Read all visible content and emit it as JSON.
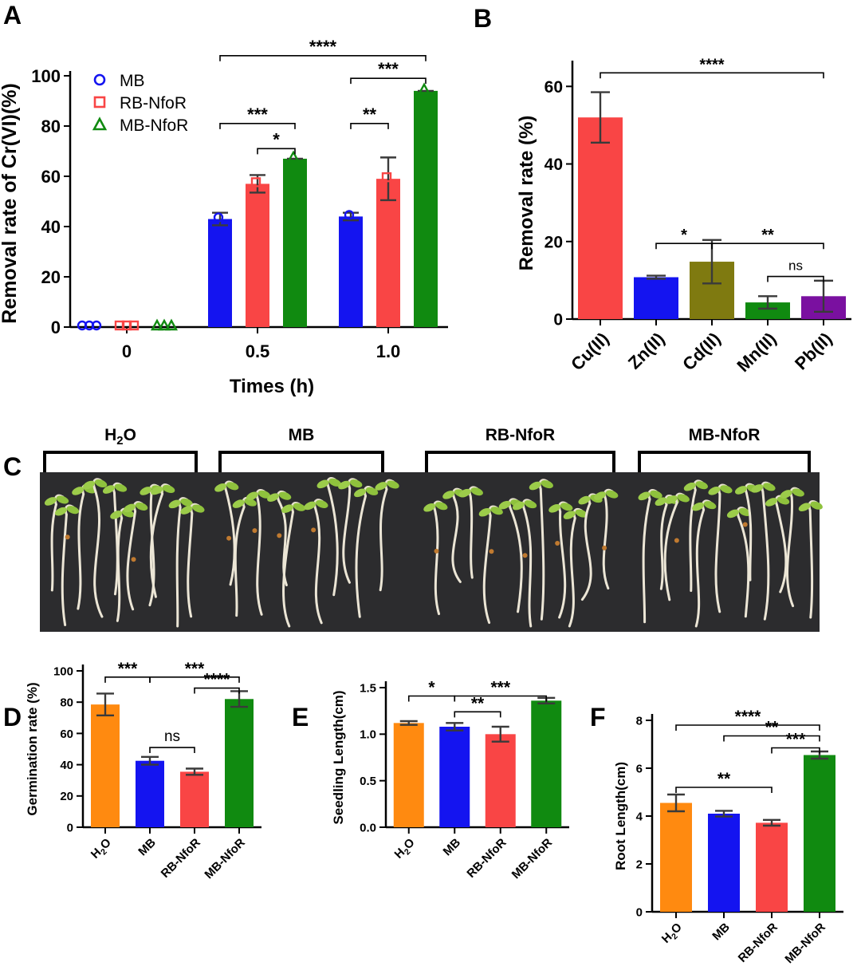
{
  "colors": {
    "blue": "#1414f0",
    "red": "#f94545",
    "green": "#108a10",
    "orange": "#ff8a10",
    "olive": "#7f7a10",
    "purple": "#7a10a0"
  },
  "panel_labels": {
    "a": "A",
    "b": "B",
    "c": "C",
    "d": "D",
    "e": "E",
    "f": "F"
  },
  "photo": {
    "groups": [
      {
        "label": "H",
        "sub": "2",
        "tail": "O"
      },
      {
        "label": "MB",
        "sub": "",
        "tail": ""
      },
      {
        "label": "RB-NfoR",
        "sub": "",
        "tail": ""
      },
      {
        "label": "MB-NfoR",
        "sub": "",
        "tail": ""
      }
    ]
  },
  "chart_data": [
    {
      "id": "A",
      "type": "bar",
      "xlabel": "Times (h)",
      "ylabel": "Removal rate of Cr(VI)(%)",
      "categories": [
        "0",
        "0.5",
        "1.0"
      ],
      "yticks": [
        "0",
        "20",
        "40",
        "60",
        "80",
        "100"
      ],
      "ylim": [
        0,
        100
      ],
      "legend_position": "top-left",
      "series": [
        {
          "name": "MB",
          "color_key": "blue",
          "marker": "circle",
          "values": [
            0,
            43,
            44
          ],
          "err": [
            0,
            2.5,
            1.5
          ]
        },
        {
          "name": "RB-NfoR",
          "color_key": "red",
          "marker": "square",
          "values": [
            0,
            57,
            59
          ],
          "err": [
            0,
            3.5,
            8.5
          ]
        },
        {
          "name": "MB-NfoR",
          "color_key": "green",
          "marker": "triangle",
          "values": [
            0,
            67,
            94
          ],
          "err": [
            0,
            0.5,
            0.5
          ]
        }
      ],
      "significance": [
        {
          "label": "****",
          "from": [
            1,
            0
          ],
          "to": [
            2,
            2
          ],
          "y": 108
        },
        {
          "label": "***",
          "from": [
            2,
            0
          ],
          "to": [
            2,
            2
          ],
          "y": 99
        },
        {
          "label": "***",
          "from": [
            1,
            0
          ],
          "to": [
            1,
            2
          ],
          "y": 81
        },
        {
          "label": "**",
          "from": [
            2,
            0
          ],
          "to": [
            2,
            1
          ],
          "y": 81
        },
        {
          "label": "*",
          "from": [
            1,
            1
          ],
          "to": [
            1,
            2
          ],
          "y": 71
        }
      ]
    },
    {
      "id": "B",
      "type": "bar",
      "ylabel": "Removal rate (%)",
      "categories": [
        "Cu(II)",
        "Zn(II)",
        "Cd(II)",
        "Mn(II)",
        "Pb(II)"
      ],
      "values": [
        52,
        10.8,
        14.8,
        4.3,
        5.9
      ],
      "err": [
        6.5,
        0.4,
        5.6,
        1.6,
        4.0
      ],
      "color_keys": [
        "red",
        "blue",
        "olive",
        "green",
        "purple"
      ],
      "yticks": [
        "0",
        "20",
        "40",
        "60"
      ],
      "ylim": [
        0,
        65
      ],
      "significance": [
        {
          "label": "****",
          "from": 0,
          "to": 4,
          "y": 63.5
        },
        {
          "label": "*",
          "from": 1,
          "to": 2,
          "y": 19.5
        },
        {
          "label": "**",
          "from": 2,
          "to": 4,
          "y": 19.5
        },
        {
          "label": "ns",
          "from": 3,
          "to": 4,
          "y": 11
        }
      ]
    },
    {
      "id": "D",
      "type": "bar",
      "ylabel": "Germination rate (%)",
      "categories": [
        "H2O",
        "MB",
        "RB-NfoR",
        "MB-NfoR"
      ],
      "values": [
        78.5,
        42.5,
        35.5,
        82
      ],
      "err": [
        7,
        2.5,
        2,
        5
      ],
      "color_keys": [
        "orange",
        "blue",
        "red",
        "green"
      ],
      "yticks": [
        "0",
        "20",
        "40",
        "60",
        "80",
        "100"
      ],
      "ylim": [
        0,
        100
      ],
      "significance": [
        {
          "label": "***",
          "from": 0,
          "to": 1,
          "y": 96
        },
        {
          "label": "***",
          "from": 1,
          "to": 3,
          "y": 96
        },
        {
          "label": "****",
          "from": 2,
          "to": 3,
          "y": 89
        },
        {
          "label": "ns",
          "from": 1,
          "to": 2,
          "y": 51
        }
      ]
    },
    {
      "id": "E",
      "type": "bar",
      "ylabel": "Seedling Length(cm)",
      "categories": [
        "H2O",
        "MB",
        "RB-NfoR",
        "MB-NfoR"
      ],
      "values": [
        1.12,
        1.08,
        1.0,
        1.36
      ],
      "err": [
        0.02,
        0.04,
        0.08,
        0.03
      ],
      "color_keys": [
        "orange",
        "blue",
        "red",
        "green"
      ],
      "yticks": [
        "0.0",
        "0.5",
        "1.0",
        "1.5"
      ],
      "ylim": [
        0,
        1.5
      ],
      "significance": [
        {
          "label": "*",
          "from": 0,
          "to": 1,
          "y": 1.41
        },
        {
          "label": "***",
          "from": 1,
          "to": 3,
          "y": 1.41
        },
        {
          "label": "**",
          "from": 1,
          "to": 2,
          "y": 1.24
        }
      ]
    },
    {
      "id": "F",
      "type": "bar",
      "ylabel": "Root Length(cm)",
      "categories": [
        "H2O",
        "MB",
        "RB-NfoR",
        "MB-NfoR"
      ],
      "values": [
        4.55,
        4.1,
        3.72,
        6.55
      ],
      "err": [
        0.35,
        0.12,
        0.12,
        0.15
      ],
      "color_keys": [
        "orange",
        "blue",
        "red",
        "green"
      ],
      "yticks": [
        "0",
        "2",
        "4",
        "6",
        "8"
      ],
      "ylim": [
        0,
        8
      ],
      "significance": [
        {
          "label": "****",
          "from": 0,
          "to": 3,
          "y": 7.8
        },
        {
          "label": "**",
          "from": 1,
          "to": 3,
          "y": 7.35
        },
        {
          "label": "***",
          "from": 2,
          "to": 3,
          "y": 6.85
        },
        {
          "label": "**",
          "from": 0,
          "to": 2,
          "y": 5.2
        }
      ]
    }
  ]
}
